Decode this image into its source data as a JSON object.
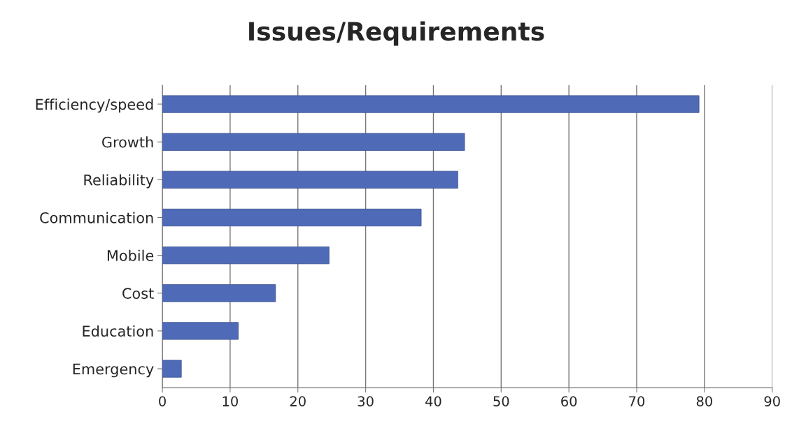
{
  "chart_data": {
    "type": "bar",
    "orientation": "horizontal",
    "title": "Issues/Requirements",
    "categories": [
      "Efficiency/speed",
      "Growth",
      "Reliability",
      "Communication",
      "Mobile",
      "Cost",
      "Education",
      "Emergency"
    ],
    "values": [
      79.2,
      44.6,
      43.6,
      38.2,
      24.6,
      16.7,
      11.2,
      2.8
    ],
    "color": "#4f6bb8",
    "xlim": [
      0,
      90
    ],
    "xticks": [
      0,
      10,
      20,
      30,
      40,
      50,
      60,
      70,
      80,
      90
    ],
    "grid": "x"
  }
}
